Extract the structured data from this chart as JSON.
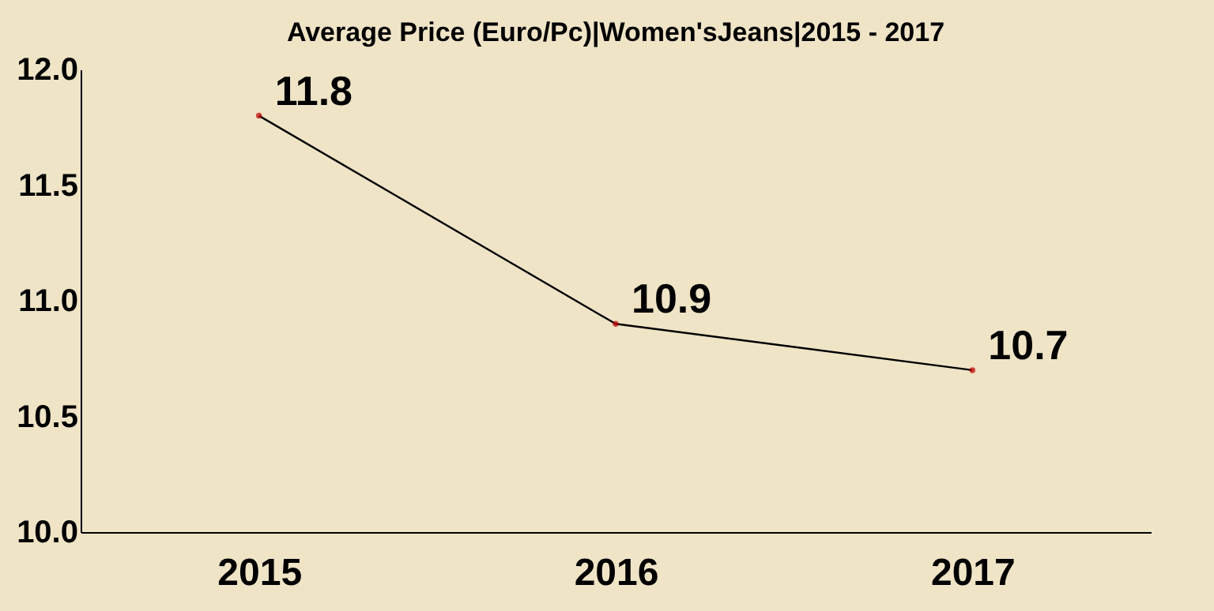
{
  "chart_data": {
    "type": "line",
    "title": "Average Price (Euro/Pc)|Women'sJeans|2015 - 2017",
    "categories": [
      "2015",
      "2016",
      "2017"
    ],
    "series": [
      {
        "color": "#000000",
        "values": [
          11.8,
          10.9,
          10.7
        ]
      }
    ],
    "ylim": [
      10,
      12
    ],
    "yticks": [
      {
        "value": 10,
        "label": "10.0"
      },
      {
        "value": 10.5,
        "label": "10.5"
      },
      {
        "value": 11,
        "label": "11.0"
      },
      {
        "value": 11.5,
        "label": "11.5"
      },
      {
        "value": 12,
        "label": "12.0"
      }
    ],
    "data_labels": true,
    "grid": false,
    "marker": "circle",
    "line_style": "solid"
  }
}
